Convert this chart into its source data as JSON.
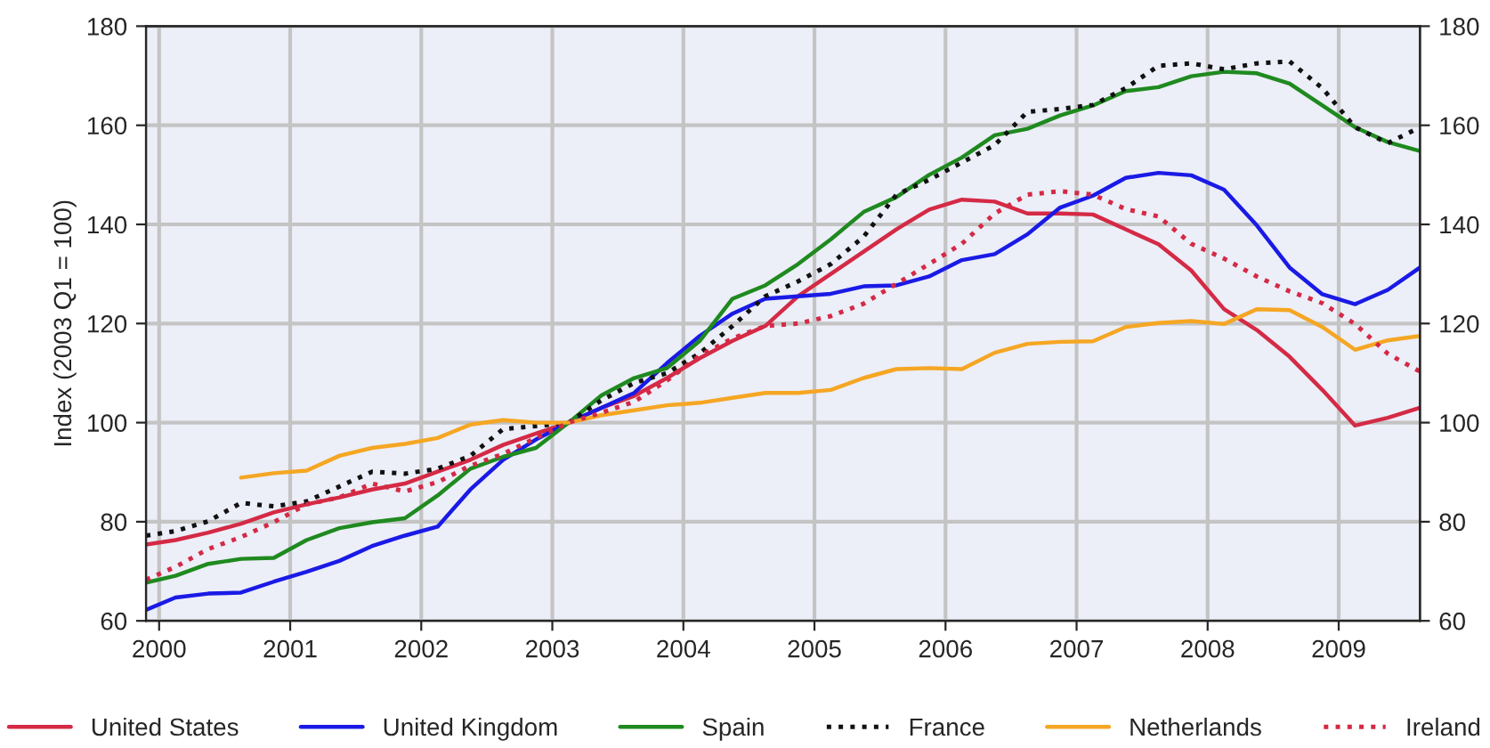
{
  "chart_data": {
    "type": "line",
    "ylabel": "Index (2003 Q1 = 100)",
    "x": [
      1999.9,
      2000.125,
      2000.375,
      2000.625,
      2000.875,
      2001.125,
      2001.375,
      2001.625,
      2001.875,
      2002.125,
      2002.375,
      2002.625,
      2002.875,
      2003.125,
      2003.375,
      2003.625,
      2003.875,
      2004.125,
      2004.375,
      2004.625,
      2004.875,
      2005.125,
      2005.375,
      2005.625,
      2005.875,
      2006.125,
      2006.375,
      2006.625,
      2006.875,
      2007.125,
      2007.375,
      2007.625,
      2007.875,
      2008.125,
      2008.375,
      2008.625,
      2008.875,
      2009.125,
      2009.375,
      2009.62
    ],
    "xlim": [
      1999.9,
      2009.62
    ],
    "xticks": [
      2000,
      2001,
      2002,
      2003,
      2004,
      2005,
      2006,
      2007,
      2008,
      2009
    ],
    "ylim": [
      60,
      180
    ],
    "yticks": [
      60,
      80,
      100,
      120,
      140,
      160,
      180
    ],
    "y2lim": [
      60,
      180
    ],
    "y2ticks": [
      60,
      80,
      100,
      120,
      140,
      160,
      180
    ],
    "grid": true,
    "legend": "bottom",
    "series": [
      {
        "name": "United States",
        "color": "#d42a45",
        "line_style": "solid",
        "values": [
          75.4,
          76.3,
          77.8,
          79.6,
          81.9,
          83.5,
          84.9,
          86.5,
          87.7,
          90.1,
          92.5,
          95.5,
          97.8,
          100,
          103,
          105.4,
          109,
          113,
          116.5,
          119.5,
          125.5,
          130,
          134.5,
          139,
          143,
          145,
          144.6,
          142.2,
          142.2,
          142,
          139,
          136,
          130.7,
          122.9,
          118.7,
          113.3,
          106.6,
          99.4,
          101,
          103
        ]
      },
      {
        "name": "United Kingdom",
        "color": "#1a1ae6",
        "line_style": "solid",
        "values": [
          62.2,
          64.7,
          65.5,
          65.7,
          67.9,
          69.9,
          72.1,
          75.1,
          77.2,
          79,
          86.5,
          92.5,
          96.6,
          100,
          103,
          106,
          112,
          117.5,
          122,
          125,
          125.5,
          126,
          127.5,
          127.7,
          129.5,
          132.8,
          134,
          138,
          143.4,
          145.8,
          149.4,
          150.4,
          149.9,
          147,
          139.8,
          131.3,
          125.9,
          123.9,
          126.8,
          131.3
        ]
      },
      {
        "name": "Spain",
        "color": "#1f8a1f",
        "line_style": "solid",
        "values": [
          67.7,
          69.1,
          71.5,
          72.5,
          72.7,
          76.3,
          78.7,
          79.9,
          80.7,
          85.3,
          90.7,
          93.1,
          94.9,
          100,
          105.5,
          109,
          111,
          116.5,
          125,
          127.7,
          132,
          137,
          142.5,
          145.5,
          150,
          153.5,
          158,
          159.3,
          162,
          164,
          166.9,
          167.7,
          169.9,
          170.8,
          170.5,
          168.4,
          164,
          159.6,
          156.6,
          154.8
        ]
      },
      {
        "name": "France",
        "color": "#111111",
        "line_style": "dotted",
        "values": [
          77.2,
          78.1,
          80.1,
          83.8,
          83.1,
          84.1,
          87.1,
          90.1,
          89.7,
          90.7,
          93.3,
          98.7,
          99.3,
          100,
          104.5,
          108,
          110,
          114,
          119.5,
          125.5,
          128.5,
          132,
          137.5,
          146,
          149,
          152.5,
          156,
          162.7,
          163.3,
          164.1,
          167.5,
          172,
          172.5,
          171.3,
          172.5,
          172.9,
          167.5,
          159.6,
          156.4,
          159.6
        ]
      },
      {
        "name": "Netherlands",
        "color": "#f5a623",
        "line_style": "solid",
        "values": [
          null,
          null,
          null,
          88.9,
          89.8,
          90.3,
          93.3,
          94.9,
          95.7,
          96.9,
          99.6,
          100.5,
          100,
          100,
          101.5,
          102.5,
          103.5,
          104,
          105,
          106,
          106,
          106.6,
          109,
          110.8,
          111,
          110.8,
          114.1,
          115.9,
          116.3,
          116.4,
          119.3,
          120.1,
          120.5,
          119.9,
          122.9,
          122.7,
          119.3,
          114.7,
          116.6,
          117.5
        ]
      },
      {
        "name": "Ireland",
        "color": "#d42a45",
        "line_style": "dotted",
        "values": [
          68.3,
          70.9,
          74.5,
          76.9,
          79.9,
          83.5,
          84.9,
          87.7,
          86.1,
          88,
          91.3,
          93.7,
          96.9,
          100,
          102,
          104.2,
          108.5,
          113.5,
          117,
          119.5,
          120,
          121.5,
          124,
          128,
          132,
          136.1,
          142.2,
          146,
          146.7,
          146,
          143.1,
          141.6,
          136.1,
          133.1,
          129.5,
          126.5,
          124.1,
          119.9,
          113.9,
          110.3
        ]
      }
    ]
  }
}
